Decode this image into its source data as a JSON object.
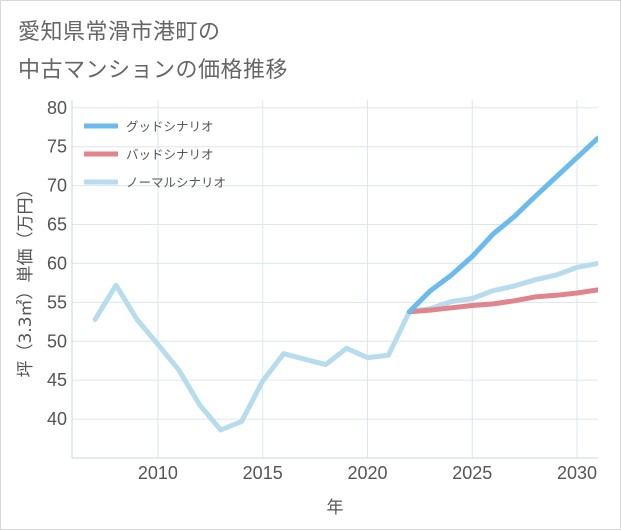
{
  "title_lines": [
    "愛知県常滑市港町の",
    "中古マンションの価格推移"
  ],
  "chart_data": {
    "type": "line",
    "title": "愛知県常滑市港町の中古マンションの価格推移",
    "xlabel": "年",
    "ylabel": "坪（3.3㎡）単価（万円）",
    "xlim": [
      2005.9,
      2031
    ],
    "ylim": [
      35,
      81
    ],
    "xticks": [
      2010,
      2015,
      2020,
      2025,
      2030
    ],
    "yticks": [
      40,
      45,
      50,
      55,
      60,
      65,
      70,
      75,
      80
    ],
    "grid": true,
    "legend_position": "top-left",
    "series": [
      {
        "name": "グッドシナリオ",
        "color": "#6bbbee",
        "x": [
          2022,
          2023,
          2024,
          2025,
          2026,
          2027,
          2028,
          2029,
          2030,
          2031
        ],
        "y": [
          53.8,
          56.5,
          58.5,
          60.9,
          63.8,
          66.0,
          68.6,
          71.1,
          73.6,
          76.1
        ]
      },
      {
        "name": "バッドシナリオ",
        "color": "#e0848d",
        "x": [
          2022,
          2023,
          2024,
          2025,
          2026,
          2027,
          2028,
          2029,
          2030,
          2031
        ],
        "y": [
          53.8,
          54.0,
          54.3,
          54.6,
          54.8,
          55.2,
          55.7,
          55.9,
          56.2,
          56.6
        ]
      },
      {
        "name": "ノーマルシナリオ",
        "color": "#b6dcee",
        "x": [
          2007,
          2008,
          2009,
          2010,
          2011,
          2012,
          2013,
          2014,
          2015,
          2016,
          2017,
          2018,
          2019,
          2020,
          2021,
          2022,
          2023,
          2024,
          2025,
          2026,
          2027,
          2028,
          2029,
          2030,
          2031
        ],
        "y": [
          52.8,
          57.2,
          52.8,
          49.6,
          46.3,
          41.8,
          38.6,
          39.7,
          44.9,
          48.4,
          47.7,
          47.0,
          49.1,
          47.9,
          48.2,
          53.8,
          54.2,
          55.1,
          55.5,
          56.5,
          57.1,
          57.9,
          58.5,
          59.5,
          60.0
        ]
      }
    ]
  }
}
